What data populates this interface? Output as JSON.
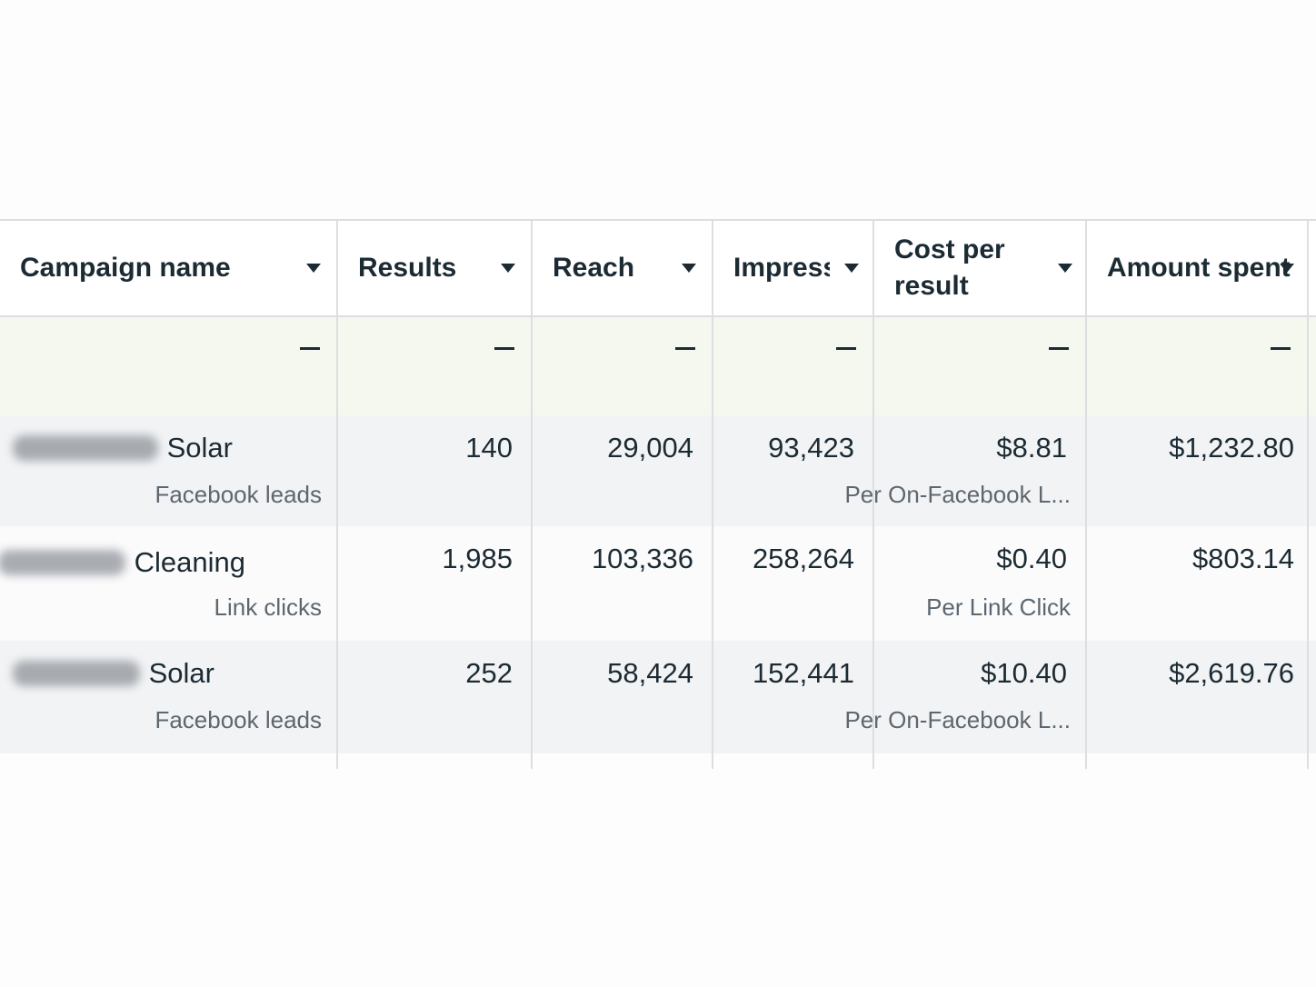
{
  "columns": [
    {
      "label": "Campaign name"
    },
    {
      "label": "Results"
    },
    {
      "label": "Reach"
    },
    {
      "label": "Impressi"
    },
    {
      "label": "Cost per\nresult"
    },
    {
      "label": "Amount spent"
    }
  ],
  "summary": {
    "placeholder": "—"
  },
  "rows": [
    {
      "name": "Solar",
      "objective": "Facebook leads",
      "results": "140",
      "reach": "29,004",
      "impressions": "93,423",
      "cost_per_result": "$8.81",
      "cost_per_result_type": "Per On-Facebook L...",
      "amount_spent": "$1,232.80"
    },
    {
      "name": "Cleaning",
      "objective": "Link clicks",
      "results": "1,985",
      "reach": "103,336",
      "impressions": "258,264",
      "cost_per_result": "$0.40",
      "cost_per_result_type": "Per Link Click",
      "amount_spent": "$803.14"
    },
    {
      "name": "Solar",
      "objective": "Facebook leads",
      "results": "252",
      "reach": "58,424",
      "impressions": "152,441",
      "cost_per_result": "$10.40",
      "cost_per_result_type": "Per On-Facebook L...",
      "amount_spent": "$2,619.76"
    }
  ]
}
